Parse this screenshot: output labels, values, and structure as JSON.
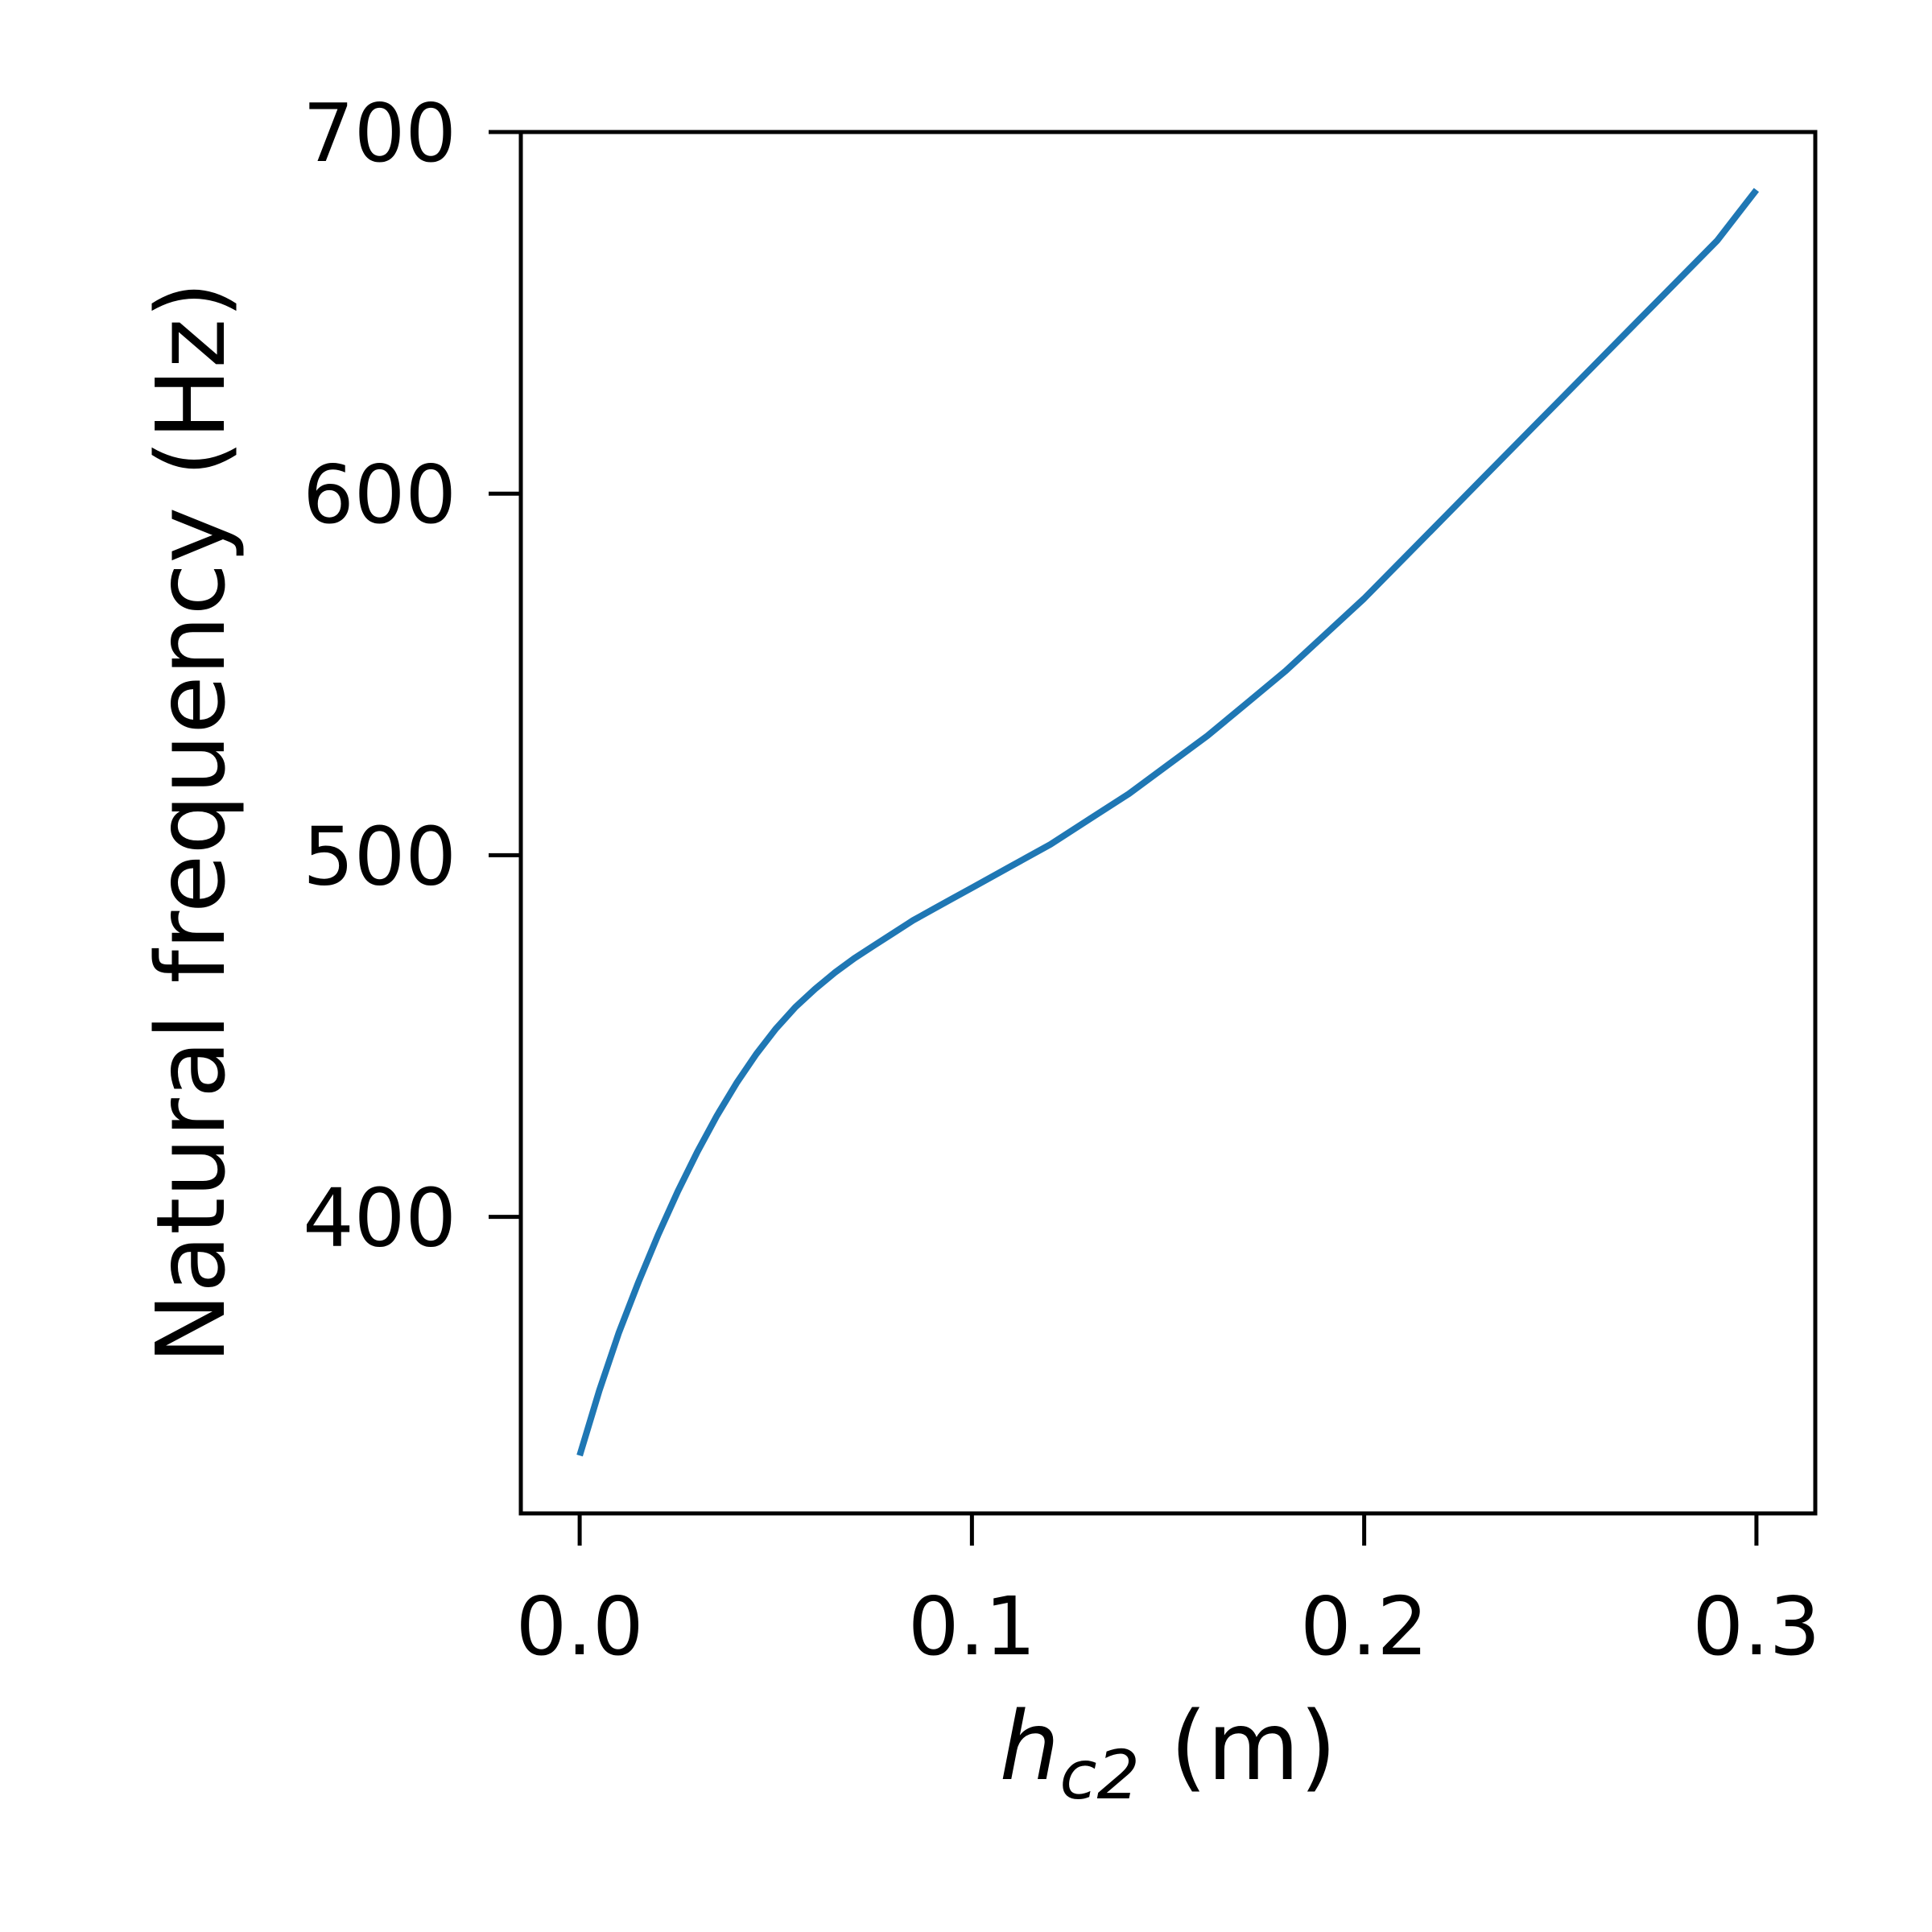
{
  "chart_data": {
    "type": "line",
    "xlabel": {
      "base": "h",
      "subscript": "c2",
      "suffix": " (m)"
    },
    "ylabel": "Natural frequency (Hz)",
    "xlim": [
      -0.015,
      0.315
    ],
    "ylim": [
      318,
      700
    ],
    "x_ticks": [
      0.0,
      0.1,
      0.2,
      0.3
    ],
    "x_tick_labels": [
      "0.0",
      "0.1",
      "0.2",
      "0.3"
    ],
    "y_ticks": [
      400,
      500,
      600,
      700
    ],
    "y_tick_labels": [
      "400",
      "500",
      "600",
      "700"
    ],
    "grid": false,
    "series": [
      {
        "color": "#1f77b4",
        "x": [
          0.0,
          0.005,
          0.01,
          0.015,
          0.02,
          0.025,
          0.03,
          0.035,
          0.04,
          0.045,
          0.05,
          0.055,
          0.06,
          0.065,
          0.07,
          0.075,
          0.08,
          0.085,
          0.09,
          0.095,
          0.1,
          0.11,
          0.12,
          0.13,
          0.14,
          0.15,
          0.16,
          0.17,
          0.18,
          0.19,
          0.2,
          0.21,
          0.22,
          0.23,
          0.24,
          0.25,
          0.26,
          0.27,
          0.28,
          0.29,
          0.3
        ],
        "y": [
          334,
          352,
          368,
          382,
          395,
          407,
          418,
          428,
          437,
          445,
          452,
          458,
          463,
          467.5,
          471.5,
          475,
          478.5,
          482,
          485,
          488,
          491,
          497,
          503,
          510,
          517,
          525,
          533,
          542,
          551,
          561,
          571,
          582,
          593,
          604,
          615,
          626,
          637,
          648,
          659,
          670,
          684
        ]
      }
    ]
  }
}
